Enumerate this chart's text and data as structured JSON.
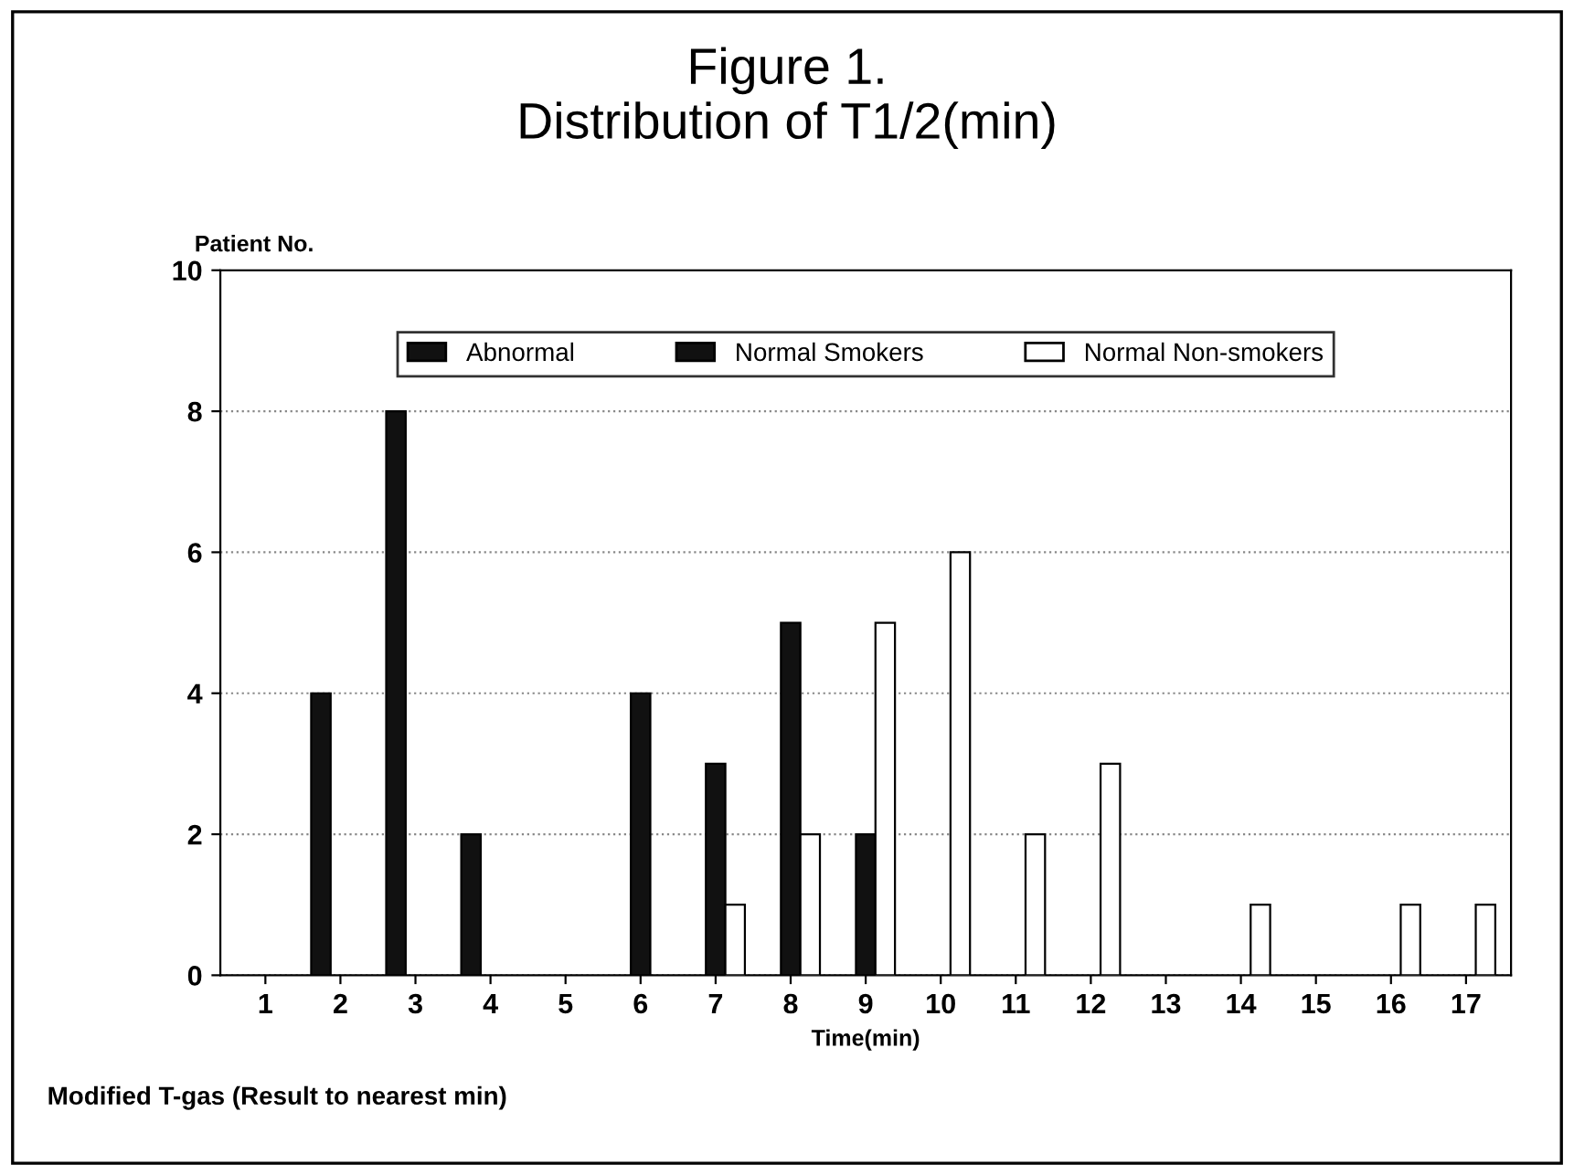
{
  "chart_data": {
    "type": "bar",
    "title": "Figure 1.\nDistribution of T1/2(min)",
    "ylabel": "Patient No.",
    "xlabel": "Time(min)",
    "categories": [
      "1",
      "2",
      "3",
      "4",
      "5",
      "6",
      "7",
      "8",
      "9",
      "10",
      "11",
      "12",
      "13",
      "14",
      "15",
      "16",
      "17"
    ],
    "series": [
      {
        "name": "Abnormal",
        "color": "#111111",
        "values": [
          null,
          4,
          8,
          2,
          null,
          null,
          null,
          null,
          null,
          null,
          null,
          null,
          null,
          null,
          null,
          null,
          null
        ]
      },
      {
        "name": "Normal Smokers",
        "color": "#111111",
        "values": [
          null,
          null,
          null,
          null,
          null,
          4,
          3,
          5,
          2,
          null,
          null,
          null,
          null,
          null,
          null,
          null,
          null
        ]
      },
      {
        "name": "Normal Non-smokers",
        "color": "#ffffff",
        "values": [
          null,
          null,
          null,
          null,
          null,
          null,
          1,
          2,
          5,
          6,
          2,
          3,
          null,
          1,
          null,
          1,
          1
        ]
      }
    ],
    "ylim": [
      0,
      10
    ],
    "yticks": [
      0,
      2,
      4,
      6,
      8,
      10
    ],
    "grid": "y",
    "legend": "top",
    "annotations": [
      "Modified T-gas (Result to nearest min)"
    ]
  }
}
